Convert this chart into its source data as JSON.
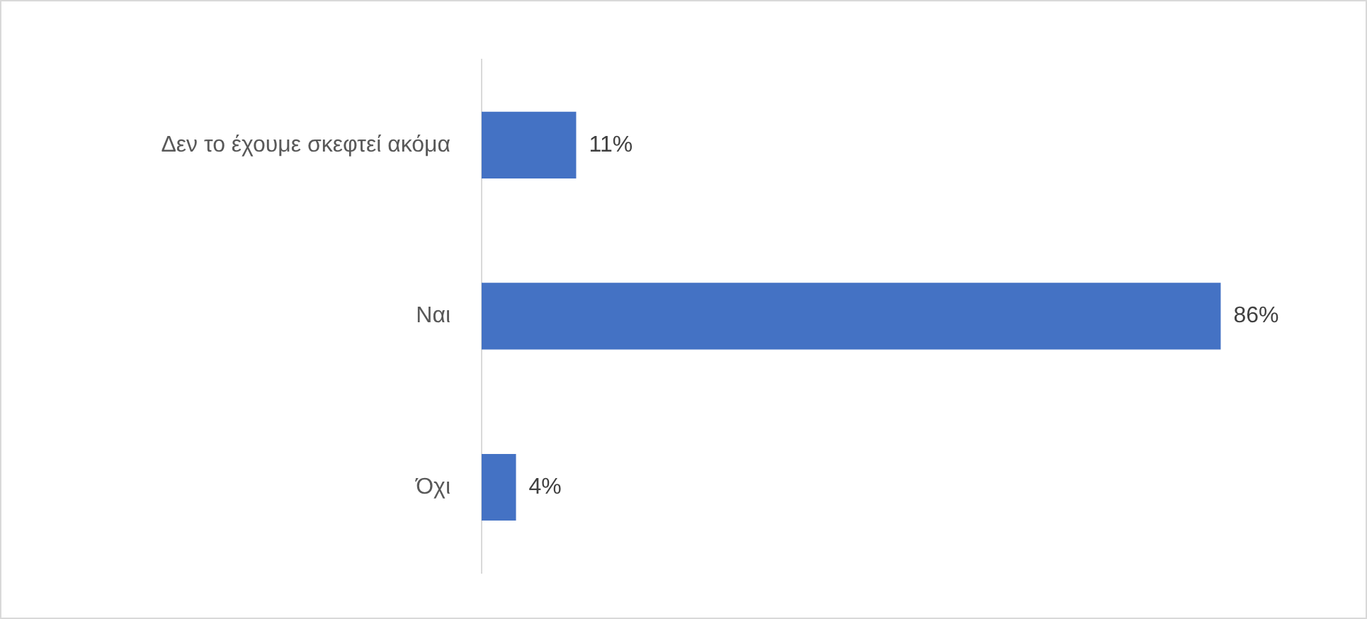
{
  "chart_data": {
    "type": "bar",
    "orientation": "horizontal",
    "categories": [
      "Δεν το έχουμε σκεφτεί ακόμα",
      "Ναι",
      "Όχι"
    ],
    "values": [
      11,
      86,
      4
    ],
    "value_labels": [
      "11%",
      "86%",
      "4%"
    ],
    "color": "#4472c4",
    "tick_labels": "y",
    "legend": false
  }
}
